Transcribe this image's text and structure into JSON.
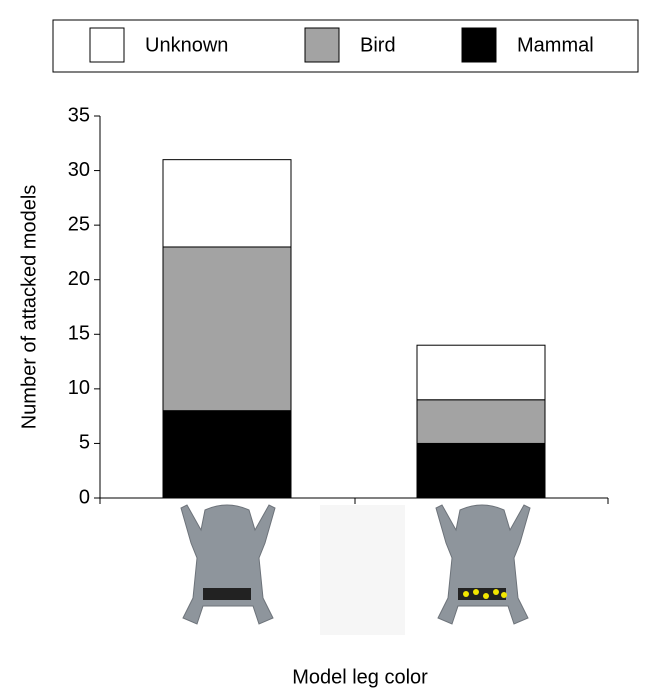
{
  "chart_data": {
    "type": "stacked-bar",
    "y_label": "Number of attacked models",
    "x_label": "Model leg color",
    "categories": [
      null,
      null
    ],
    "series": [
      {
        "name": "Unknown",
        "color": "#ffffff",
        "values": [
          8,
          5
        ]
      },
      {
        "name": "Bird",
        "color": "#a3a3a3",
        "values": [
          15,
          4
        ]
      },
      {
        "name": "Mammal",
        "color": "#000000",
        "values": [
          8,
          5
        ]
      }
    ],
    "ylim": [
      0,
      35
    ],
    "yticks": [
      0,
      5,
      10,
      15,
      20,
      25,
      30,
      35
    ]
  }
}
